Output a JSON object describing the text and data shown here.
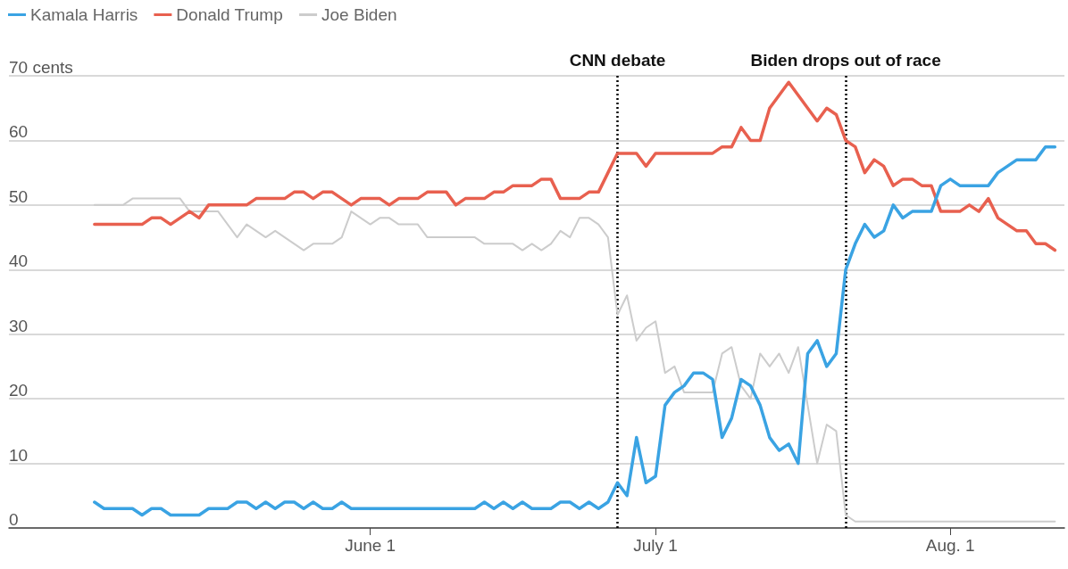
{
  "chart_data": {
    "type": "line",
    "x": [
      "--05-03",
      "--05-04",
      "--05-05",
      "--05-06",
      "--05-07",
      "--05-08",
      "--05-09",
      "--05-10",
      "--05-11",
      "--05-12",
      "--05-13",
      "--05-14",
      "--05-15",
      "--05-16",
      "--05-17",
      "--05-18",
      "--05-19",
      "--05-20",
      "--05-21",
      "--05-22",
      "--05-23",
      "--05-24",
      "--05-25",
      "--05-26",
      "--05-27",
      "--05-28",
      "--05-29",
      "--05-30",
      "--05-31",
      "--06-01",
      "--06-02",
      "--06-03",
      "--06-04",
      "--06-05",
      "--06-06",
      "--06-07",
      "--06-08",
      "--06-09",
      "--06-10",
      "--06-11",
      "--06-12",
      "--06-13",
      "--06-14",
      "--06-15",
      "--06-16",
      "--06-17",
      "--06-18",
      "--06-19",
      "--06-20",
      "--06-21",
      "--06-22",
      "--06-23",
      "--06-24",
      "--06-25",
      "--06-26",
      "--06-27",
      "--06-28",
      "--06-29",
      "--06-30",
      "--07-01",
      "--07-02",
      "--07-03",
      "--07-04",
      "--07-05",
      "--07-06",
      "--07-07",
      "--07-08",
      "--07-09",
      "--07-10",
      "--07-11",
      "--07-12",
      "--07-13",
      "--07-14",
      "--07-15",
      "--07-16",
      "--07-17",
      "--07-18",
      "--07-19",
      "--07-20",
      "--07-21",
      "--07-22",
      "--07-23",
      "--07-24",
      "--07-25",
      "--07-26",
      "--07-27",
      "--07-28",
      "--07-29",
      "--07-30",
      "--07-31",
      "--08-01",
      "--08-02",
      "--08-03",
      "--08-04",
      "--08-05",
      "--08-06",
      "--08-07",
      "--08-08",
      "--08-09",
      "--08-10",
      "--08-11",
      "--08-12"
    ],
    "series": [
      {
        "name": "Kamala Harris",
        "color": "#3aa3e3",
        "values": [
          4,
          3,
          3,
          3,
          3,
          2,
          3,
          3,
          2,
          2,
          2,
          2,
          3,
          3,
          3,
          4,
          4,
          3,
          4,
          3,
          4,
          4,
          3,
          4,
          3,
          3,
          4,
          3,
          3,
          3,
          3,
          3,
          3,
          3,
          3,
          3,
          3,
          3,
          3,
          3,
          3,
          4,
          3,
          4,
          3,
          4,
          3,
          3,
          3,
          4,
          4,
          3,
          4,
          3,
          4,
          7,
          5,
          14,
          7,
          8,
          19,
          21,
          22,
          24,
          24,
          23,
          14,
          17,
          23,
          22,
          19,
          14,
          12,
          13,
          10,
          27,
          29,
          25,
          27,
          40,
          44,
          47,
          45,
          46,
          50,
          48,
          49,
          49,
          49,
          53,
          54,
          53,
          53,
          53,
          53,
          55,
          56,
          57,
          57,
          57,
          59,
          59
        ]
      },
      {
        "name": "Donald Trump",
        "color": "#e8604f",
        "values": [
          47,
          47,
          47,
          47,
          47,
          47,
          48,
          48,
          47,
          48,
          49,
          48,
          50,
          50,
          50,
          50,
          50,
          51,
          51,
          51,
          51,
          52,
          52,
          51,
          52,
          52,
          51,
          50,
          51,
          51,
          51,
          50,
          51,
          51,
          51,
          52,
          52,
          52,
          50,
          51,
          51,
          51,
          52,
          52,
          53,
          53,
          53,
          54,
          54,
          51,
          51,
          51,
          52,
          52,
          55,
          58,
          58,
          58,
          56,
          58,
          58,
          58,
          58,
          58,
          58,
          58,
          59,
          59,
          62,
          60,
          60,
          65,
          67,
          69,
          67,
          65,
          63,
          65,
          64,
          60,
          59,
          55,
          57,
          56,
          53,
          54,
          54,
          53,
          53,
          49,
          49,
          49,
          50,
          49,
          51,
          48,
          47,
          46,
          46,
          44,
          44,
          43
        ]
      },
      {
        "name": "Joe Biden",
        "color": "#cccccc",
        "values": [
          50,
          50,
          50,
          50,
          51,
          51,
          51,
          51,
          51,
          51,
          49,
          49,
          49,
          49,
          47,
          45,
          47,
          46,
          45,
          46,
          45,
          44,
          43,
          44,
          44,
          44,
          45,
          49,
          48,
          47,
          48,
          48,
          47,
          47,
          47,
          45,
          45,
          45,
          45,
          45,
          45,
          44,
          44,
          44,
          44,
          43,
          44,
          43,
          44,
          46,
          45,
          48,
          48,
          47,
          45,
          33,
          36,
          29,
          31,
          32,
          24,
          25,
          21,
          21,
          21,
          21,
          27,
          28,
          22,
          20,
          27,
          25,
          27,
          24,
          28,
          19,
          10,
          16,
          15,
          2,
          1,
          1,
          1,
          1,
          1,
          1,
          1,
          1,
          1,
          1,
          1,
          1,
          1,
          1,
          1,
          1,
          1,
          1,
          1,
          1,
          1,
          1
        ]
      }
    ],
    "xlim": [
      "--04-24",
      "--08-13"
    ],
    "xticks": [
      {
        "value": "--06-01",
        "label": "June 1"
      },
      {
        "value": "--07-01",
        "label": "July 1"
      },
      {
        "value": "--08-01",
        "label": "Aug. 1"
      }
    ],
    "ylim": [
      0,
      70
    ],
    "yticks": [
      0,
      10,
      20,
      30,
      40,
      50,
      60,
      {
        "value": 70,
        "label": "70 cents"
      }
    ],
    "ref_lines": [
      {
        "axis": "x",
        "value": "--06-27",
        "label": "CNN debate",
        "color": "#000000",
        "line_style": "dotted"
      },
      {
        "axis": "x",
        "value": "--07-21",
        "label": "Biden drops out of race",
        "color": "#000000",
        "line_style": "dotted"
      }
    ],
    "grid": "y",
    "legend": "top left",
    "marker": "none",
    "line_style": "solid"
  }
}
